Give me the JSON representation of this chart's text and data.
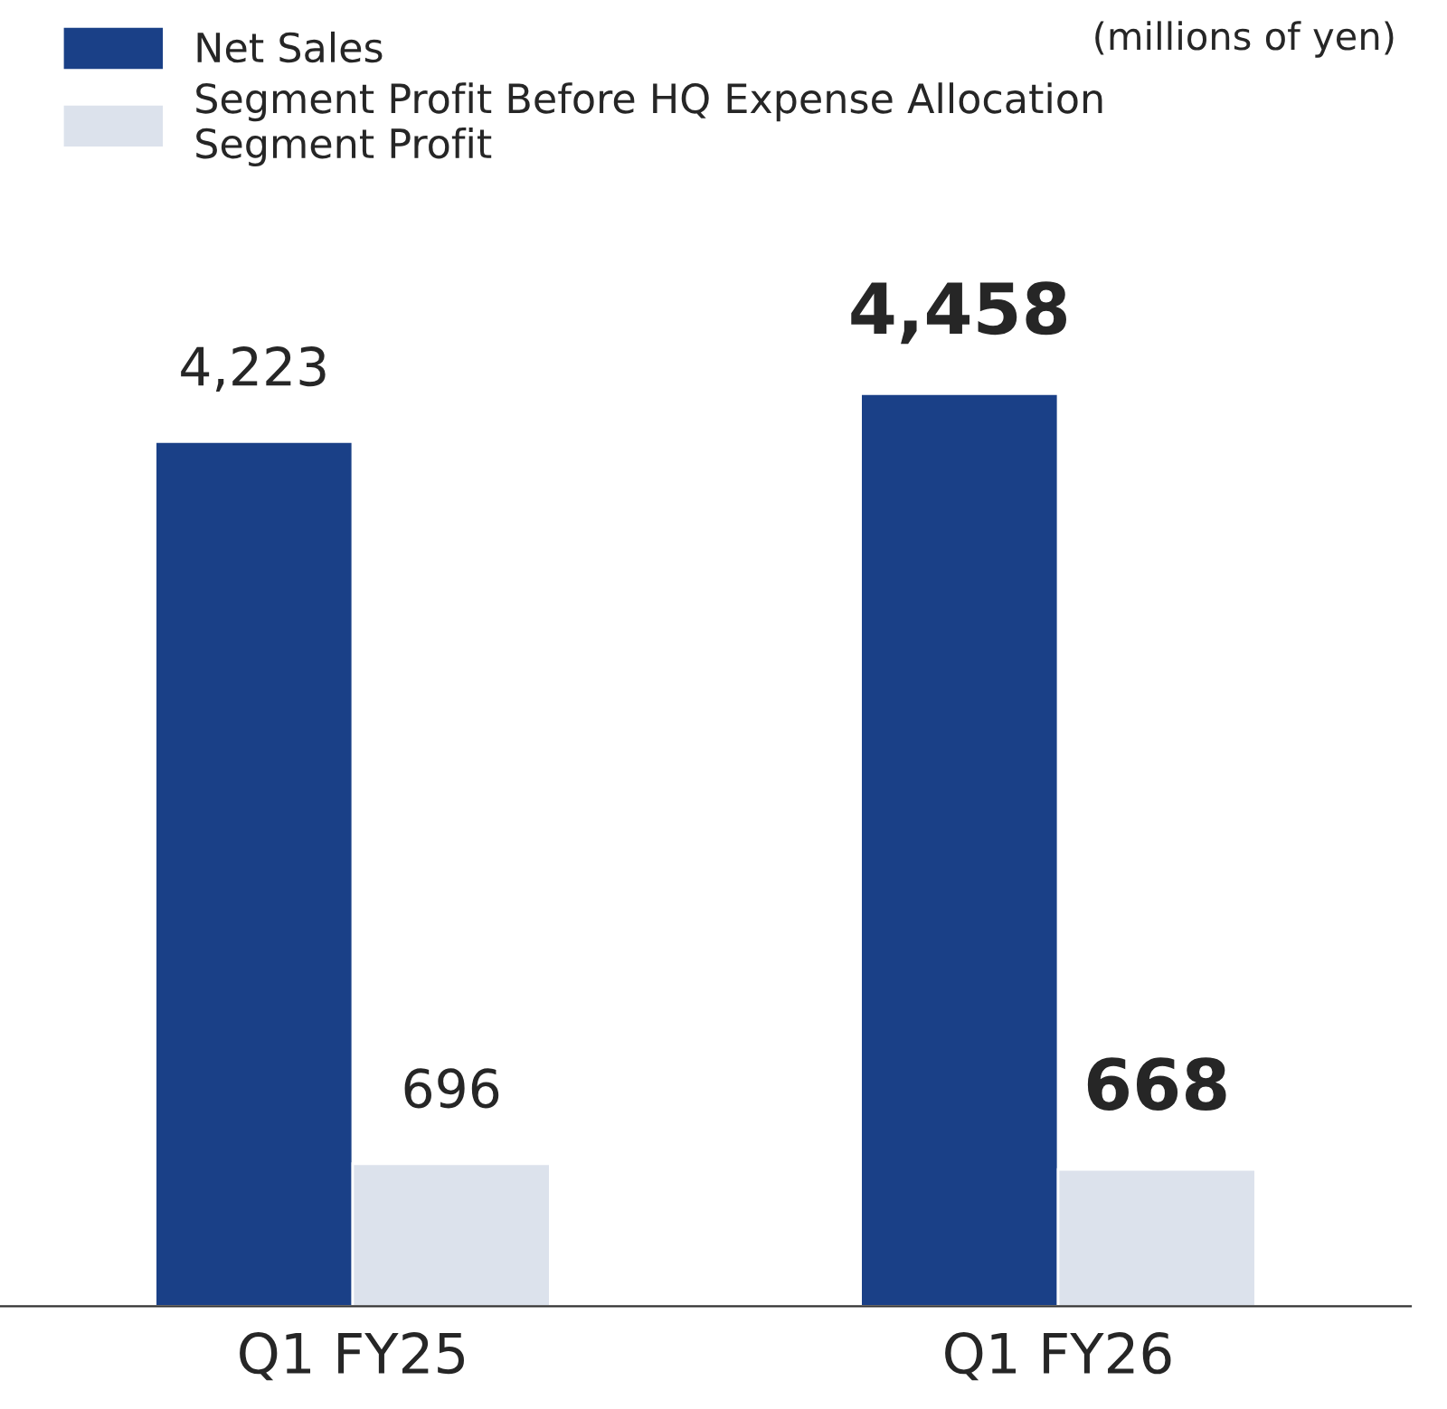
{
  "chart_data": {
    "type": "bar",
    "categories": [
      "Q1 FY25",
      "Q1 FY26"
    ],
    "series": [
      {
        "name": "Net Sales",
        "color": "#1a4087",
        "values": [
          4223,
          4458
        ],
        "value_labels": [
          "4,223",
          "4,458"
        ]
      },
      {
        "name": "Segment Profit Before HQ Expense Allocation\nSegment Profit",
        "color": "#dce2ec",
        "values": [
          696,
          668
        ],
        "value_labels": [
          "696",
          "668"
        ]
      }
    ],
    "legend": "top left",
    "grid": false,
    "annotations": [
      "(millions of yen)"
    ]
  }
}
